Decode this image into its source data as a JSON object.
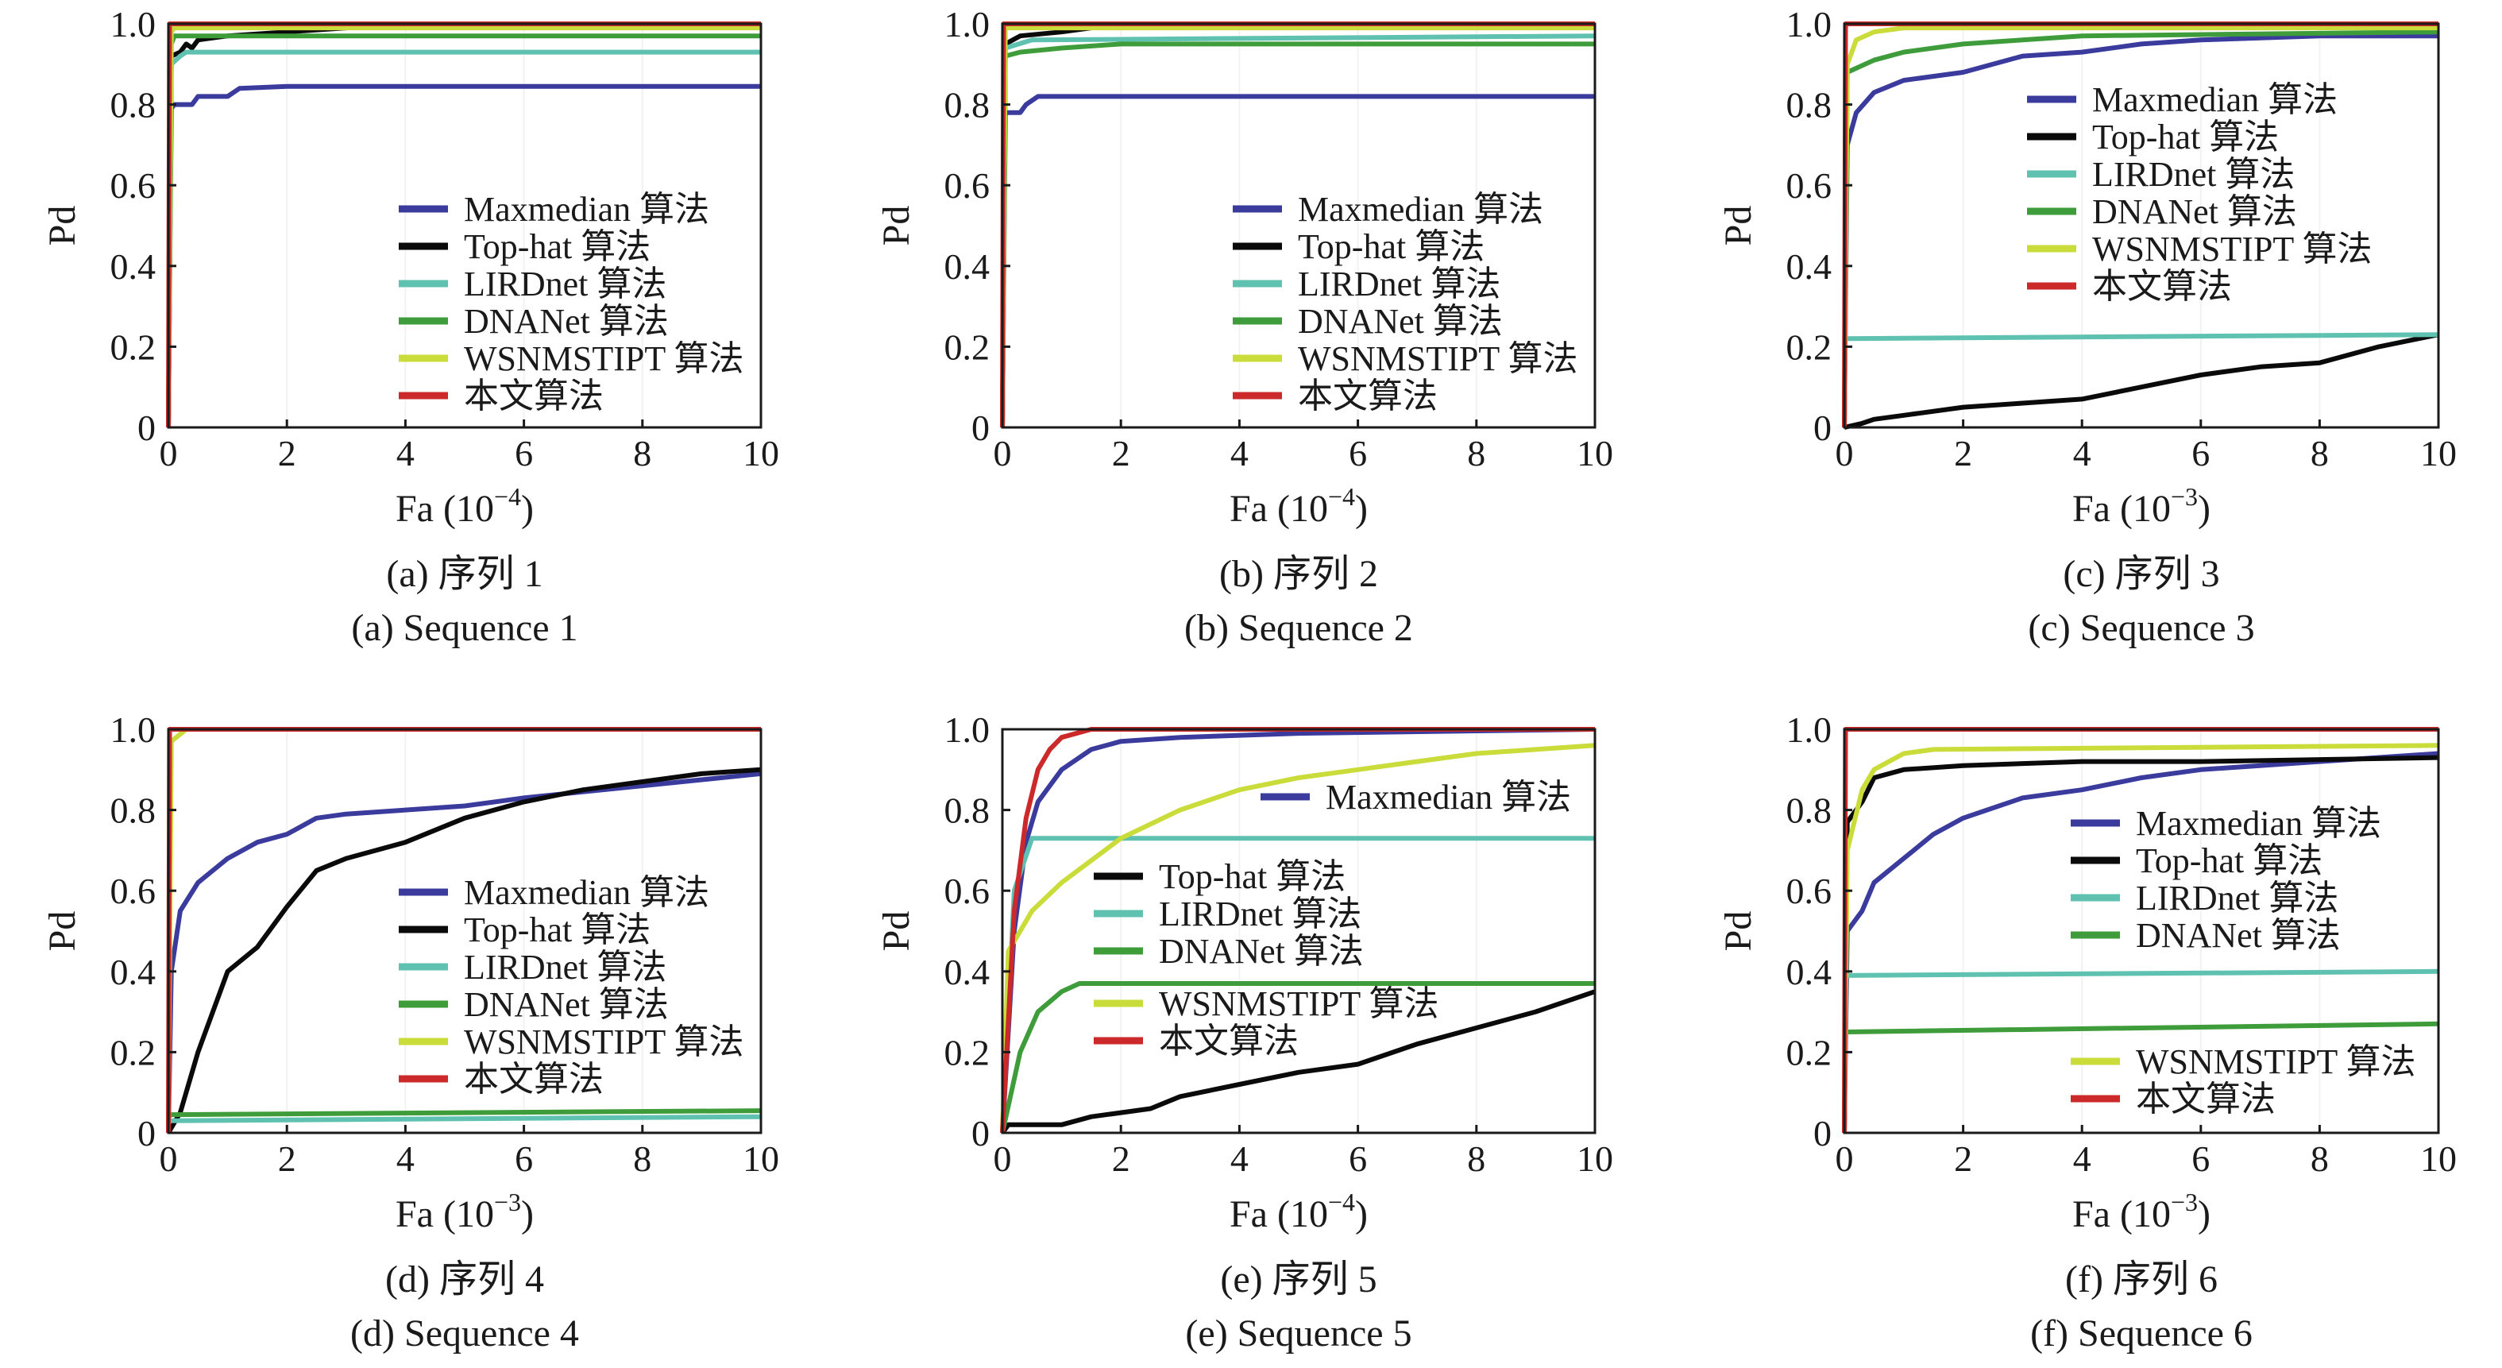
{
  "figure": {
    "xlabel_base": "Fa",
    "ylabel": "Pd"
  },
  "series_colors": {
    "Maxmedian 算法": "#3b3b9e",
    "Top-hat 算法": "#0a0a0a",
    "LIRDnet 算法": "#5fc2b0",
    "DNANet 算法": "#3e9c3a",
    "WSNMSTIPT 算法": "#c9dc3a",
    "本文算法": "#cc2a2a"
  },
  "chart_data": [
    {
      "type": "line",
      "caption_cn": "(a) 序列 1",
      "caption_en": "(a) Sequence 1",
      "xlabel": "Fa (10",
      "xexp": "−4",
      "ylabel": "Pd",
      "xlim": [
        0,
        10
      ],
      "ylim": [
        0,
        1.0
      ],
      "xticks": [
        "0",
        "2",
        "4",
        "6",
        "8",
        "10"
      ],
      "yticks": [
        "0",
        "0.2",
        "0.4",
        "0.6",
        "0.8",
        "1.0"
      ],
      "legend": "lower-right",
      "series": [
        {
          "name": "Maxmedian 算法",
          "x": [
            0,
            0.05,
            0.1,
            0.4,
            0.5,
            1.0,
            1.2,
            2.0,
            10
          ],
          "y": [
            0,
            0.79,
            0.8,
            0.8,
            0.82,
            0.82,
            0.84,
            0.845,
            0.845
          ]
        },
        {
          "name": "Top-hat 算法",
          "x": [
            0,
            0.05,
            0.2,
            0.3,
            0.4,
            0.5,
            1.0,
            2.0,
            4.0,
            10
          ],
          "y": [
            0,
            0.92,
            0.93,
            0.95,
            0.94,
            0.96,
            0.97,
            0.98,
            1.0,
            1.0
          ]
        },
        {
          "name": "LIRDnet 算法",
          "x": [
            0,
            0.05,
            0.2,
            0.3,
            10
          ],
          "y": [
            0,
            0.9,
            0.92,
            0.93,
            0.93
          ]
        },
        {
          "name": "DNANet 算法",
          "x": [
            0,
            0.05,
            0.1,
            10
          ],
          "y": [
            0,
            0.95,
            0.97,
            0.97
          ]
        },
        {
          "name": "WSNMSTIPT 算法",
          "x": [
            0,
            0.05,
            0.1,
            10
          ],
          "y": [
            0,
            0.98,
            0.99,
            0.99
          ]
        },
        {
          "name": "本文算法",
          "x": [
            0,
            0.02,
            10
          ],
          "y": [
            0,
            1.0,
            1.0
          ]
        }
      ]
    },
    {
      "type": "line",
      "caption_cn": "(b) 序列 2",
      "caption_en": "(b) Sequence 2",
      "xlabel": "Fa (10",
      "xexp": "−4",
      "ylabel": "Pd",
      "xlim": [
        0,
        10
      ],
      "ylim": [
        0,
        1.0
      ],
      "xticks": [
        "0",
        "2",
        "4",
        "6",
        "8",
        "10"
      ],
      "yticks": [
        "0",
        "0.2",
        "0.4",
        "0.6",
        "0.8",
        "1.0"
      ],
      "legend": "lower-right",
      "series": [
        {
          "name": "Maxmedian 算法",
          "x": [
            0,
            0.05,
            0.3,
            0.4,
            0.6,
            10
          ],
          "y": [
            0,
            0.78,
            0.78,
            0.8,
            0.82,
            0.82
          ]
        },
        {
          "name": "Top-hat 算法",
          "x": [
            0,
            0.05,
            0.3,
            1.0,
            2.0,
            10
          ],
          "y": [
            0,
            0.95,
            0.97,
            0.98,
            1.0,
            1.0
          ]
        },
        {
          "name": "LIRDnet 算法",
          "x": [
            0,
            0.05,
            0.5,
            10
          ],
          "y": [
            0,
            0.94,
            0.96,
            0.97
          ]
        },
        {
          "name": "DNANet 算法",
          "x": [
            0,
            0.05,
            0.3,
            1.0,
            2.0,
            10
          ],
          "y": [
            0,
            0.92,
            0.93,
            0.94,
            0.95,
            0.95
          ]
        },
        {
          "name": "WSNMSTIPT 算法",
          "x": [
            0,
            0.05,
            10
          ],
          "y": [
            0,
            0.99,
            0.99
          ]
        },
        {
          "name": "本文算法",
          "x": [
            0,
            0.02,
            10
          ],
          "y": [
            0,
            1.0,
            1.0
          ]
        }
      ]
    },
    {
      "type": "line",
      "caption_cn": "(c) 序列 3",
      "caption_en": "(c) Sequence 3",
      "xlabel": "Fa (10",
      "xexp": "−3",
      "ylabel": "Pd",
      "xlim": [
        0,
        10
      ],
      "ylim": [
        0,
        1.0
      ],
      "xticks": [
        "0",
        "2",
        "4",
        "6",
        "8",
        "10"
      ],
      "yticks": [
        "0",
        "0.2",
        "0.4",
        "0.6",
        "0.8",
        "1.0"
      ],
      "legend": "center-right",
      "series": [
        {
          "name": "Maxmedian 算法",
          "x": [
            0,
            0.05,
            0.2,
            0.5,
            1.0,
            2.0,
            3.0,
            4.0,
            5.0,
            6.0,
            8.0,
            10
          ],
          "y": [
            0,
            0.7,
            0.78,
            0.83,
            0.86,
            0.88,
            0.92,
            0.93,
            0.95,
            0.96,
            0.97,
            0.97
          ]
        },
        {
          "name": "Top-hat 算法",
          "x": [
            0,
            0.3,
            0.5,
            1.0,
            2.0,
            3.0,
            4.0,
            5.0,
            6.0,
            7.0,
            8.0,
            9.0,
            10
          ],
          "y": [
            0,
            0.01,
            0.02,
            0.03,
            0.05,
            0.06,
            0.07,
            0.1,
            0.13,
            0.15,
            0.16,
            0.2,
            0.23
          ]
        },
        {
          "name": "LIRDnet 算法",
          "x": [
            0,
            0.05,
            10
          ],
          "y": [
            0.22,
            0.22,
            0.23
          ]
        },
        {
          "name": "DNANet 算法",
          "x": [
            0,
            0.05,
            0.5,
            1.0,
            2.0,
            3.0,
            4.0,
            10
          ],
          "y": [
            0,
            0.88,
            0.91,
            0.93,
            0.95,
            0.96,
            0.97,
            0.98
          ]
        },
        {
          "name": "WSNMSTIPT 算法",
          "x": [
            0,
            0.05,
            0.2,
            0.5,
            1.0,
            10
          ],
          "y": [
            0,
            0.9,
            0.96,
            0.98,
            0.99,
            0.99
          ]
        },
        {
          "name": "本文算法",
          "x": [
            0,
            0.02,
            10
          ],
          "y": [
            0,
            1.0,
            1.0
          ]
        }
      ]
    },
    {
      "type": "line",
      "caption_cn": "(d) 序列 4",
      "caption_en": "(d) Sequence 4",
      "xlabel": "Fa (10",
      "xexp": "−3",
      "ylabel": "Pd",
      "xlim": [
        0,
        10
      ],
      "ylim": [
        0,
        1.0
      ],
      "xticks": [
        "0",
        "2",
        "4",
        "6",
        "8",
        "10"
      ],
      "yticks": [
        "0",
        "0.2",
        "0.4",
        "0.6",
        "0.8",
        "1.0"
      ],
      "legend": "center-right",
      "series": [
        {
          "name": "Maxmedian 算法",
          "x": [
            0,
            0.05,
            0.2,
            0.5,
            1.0,
            1.5,
            2.0,
            2.5,
            3.0,
            4.0,
            5.0,
            6.0,
            8.0,
            10
          ],
          "y": [
            0,
            0.4,
            0.55,
            0.62,
            0.68,
            0.72,
            0.74,
            0.78,
            0.79,
            0.8,
            0.81,
            0.83,
            0.86,
            0.89
          ]
        },
        {
          "name": "Top-hat 算法",
          "x": [
            0,
            0.2,
            0.5,
            1.0,
            1.5,
            2.0,
            2.5,
            3.0,
            4.0,
            5.0,
            6.0,
            7.0,
            8.0,
            9.0,
            10
          ],
          "y": [
            0,
            0.05,
            0.2,
            0.4,
            0.46,
            0.56,
            0.65,
            0.68,
            0.72,
            0.78,
            0.82,
            0.85,
            0.87,
            0.89,
            0.9
          ]
        },
        {
          "name": "LIRDnet 算法",
          "x": [
            0,
            0.05,
            10
          ],
          "y": [
            0.03,
            0.03,
            0.04
          ]
        },
        {
          "name": "DNANet 算法",
          "x": [
            0,
            0.05,
            10
          ],
          "y": [
            0.04,
            0.045,
            0.055
          ]
        },
        {
          "name": "WSNMSTIPT 算法",
          "x": [
            0,
            0.05,
            0.3,
            10
          ],
          "y": [
            0,
            0.97,
            1.0,
            1.0
          ]
        },
        {
          "name": "本文算法",
          "x": [
            0,
            0.02,
            10
          ],
          "y": [
            0,
            1.0,
            1.0
          ]
        }
      ]
    },
    {
      "type": "line",
      "caption_cn": "(e) 序列 5",
      "caption_en": "(e) Sequence 5",
      "xlabel": "Fa (10",
      "xexp": "−4",
      "ylabel": "Pd",
      "xlim": [
        0,
        10
      ],
      "ylim": [
        0,
        1.0
      ],
      "xticks": [
        "0",
        "2",
        "4",
        "6",
        "8",
        "10"
      ],
      "yticks": [
        "0",
        "0.2",
        "0.4",
        "0.6",
        "0.8",
        "1.0"
      ],
      "legend": "split",
      "series": [
        {
          "name": "Maxmedian 算法",
          "x": [
            0,
            0.2,
            0.4,
            0.6,
            1.0,
            1.5,
            2.0,
            3.0,
            5.0,
            10
          ],
          "y": [
            0,
            0.5,
            0.72,
            0.82,
            0.9,
            0.95,
            0.97,
            0.98,
            0.99,
            1.0
          ]
        },
        {
          "name": "Top-hat 算法",
          "x": [
            0,
            0.1,
            1.0,
            1.5,
            2.0,
            2.5,
            3.0,
            4.0,
            5.0,
            6.0,
            7.0,
            8.0,
            9.0,
            10
          ],
          "y": [
            0,
            0.02,
            0.02,
            0.04,
            0.05,
            0.06,
            0.09,
            0.12,
            0.15,
            0.17,
            0.22,
            0.26,
            0.3,
            0.35
          ]
        },
        {
          "name": "LIRDnet 算法",
          "x": [
            0,
            0.2,
            0.5,
            10
          ],
          "y": [
            0,
            0.6,
            0.73,
            0.73
          ]
        },
        {
          "name": "DNANet 算法",
          "x": [
            0,
            0.3,
            0.6,
            1.0,
            1.3,
            10
          ],
          "y": [
            0,
            0.2,
            0.3,
            0.35,
            0.37,
            0.37
          ]
        },
        {
          "name": "WSNMSTIPT 算法",
          "x": [
            0,
            0.1,
            0.5,
            1.0,
            2.0,
            3.0,
            4.0,
            5.0,
            6.0,
            7.0,
            8.0,
            9.0,
            10
          ],
          "y": [
            0,
            0.45,
            0.55,
            0.62,
            0.73,
            0.8,
            0.85,
            0.88,
            0.9,
            0.92,
            0.94,
            0.95,
            0.96
          ]
        },
        {
          "name": "本文算法",
          "x": [
            0,
            0.2,
            0.4,
            0.6,
            0.8,
            1.0,
            1.5,
            10
          ],
          "y": [
            0,
            0.55,
            0.78,
            0.9,
            0.95,
            0.98,
            1.0,
            1.0
          ]
        }
      ]
    },
    {
      "type": "line",
      "caption_cn": "(f) 序列 6",
      "caption_en": "(f) Sequence 6",
      "xlabel": "Fa (10",
      "xexp": "−3",
      "ylabel": "Pd",
      "xlim": [
        0,
        10
      ],
      "ylim": [
        0,
        1.0
      ],
      "xticks": [
        "0",
        "2",
        "4",
        "6",
        "8",
        "10"
      ],
      "yticks": [
        "0",
        "0.2",
        "0.4",
        "0.6",
        "0.8",
        "1.0"
      ],
      "legend": "split",
      "series": [
        {
          "name": "Maxmedian 算法",
          "x": [
            0,
            0.05,
            0.3,
            0.5,
            1.0,
            1.5,
            2.0,
            3.0,
            4.0,
            5.0,
            6.0,
            8.0,
            10
          ],
          "y": [
            0,
            0.5,
            0.55,
            0.62,
            0.68,
            0.74,
            0.78,
            0.83,
            0.85,
            0.88,
            0.9,
            0.92,
            0.94
          ]
        },
        {
          "name": "Top-hat 算法",
          "x": [
            0,
            0.05,
            0.3,
            0.5,
            1.0,
            2.0,
            4.0,
            6.0,
            10
          ],
          "y": [
            0,
            0.77,
            0.82,
            0.88,
            0.9,
            0.91,
            0.92,
            0.92,
            0.93
          ]
        },
        {
          "name": "LIRDnet 算法",
          "x": [
            0,
            0.05,
            10
          ],
          "y": [
            0.39,
            0.39,
            0.4
          ]
        },
        {
          "name": "DNANet 算法",
          "x": [
            0,
            0.05,
            10
          ],
          "y": [
            0.24,
            0.25,
            0.27
          ]
        },
        {
          "name": "WSNMSTIPT 算法",
          "x": [
            0,
            0.05,
            0.3,
            0.5,
            1.0,
            1.5,
            10
          ],
          "y": [
            0,
            0.7,
            0.85,
            0.9,
            0.94,
            0.95,
            0.96
          ]
        },
        {
          "name": "本文算法",
          "x": [
            0,
            0.02,
            10
          ],
          "y": [
            0,
            1.0,
            1.0
          ]
        }
      ]
    }
  ]
}
